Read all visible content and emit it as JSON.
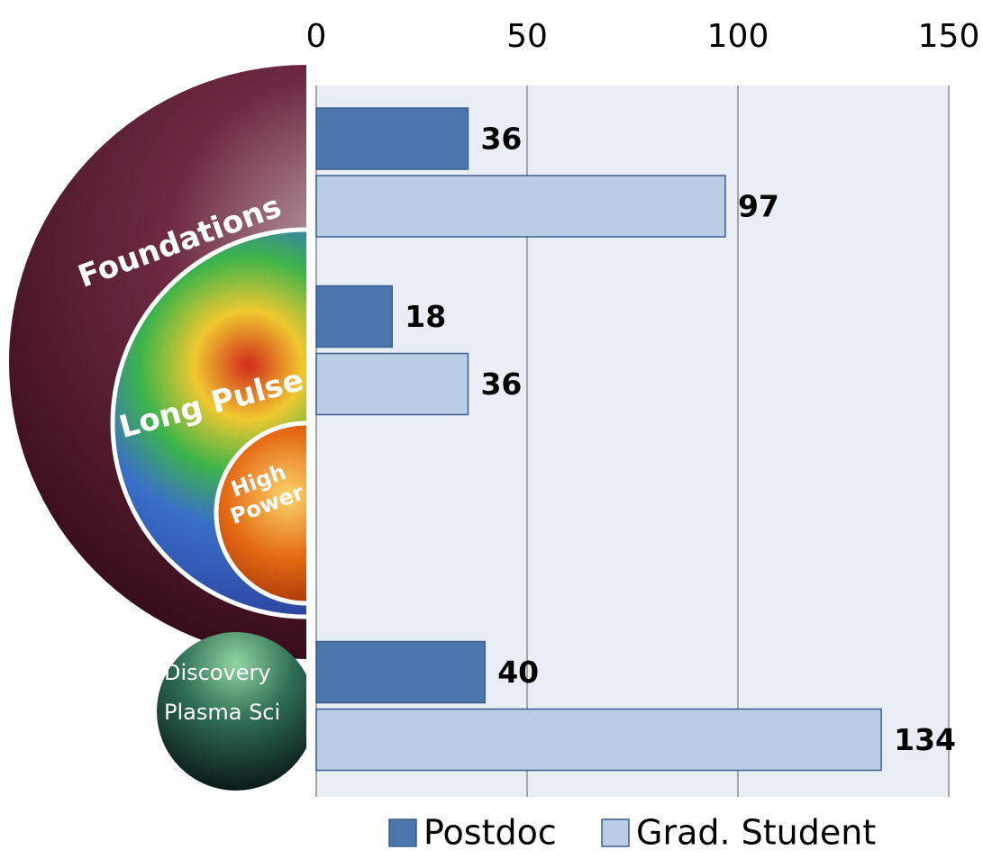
{
  "chart_data": {
    "type": "bar",
    "orientation": "horizontal",
    "categories": [
      "Foundations",
      "Long Pulse",
      "High Power",
      "Discovery Plasma Sci"
    ],
    "series": [
      {
        "name": "Postdoc",
        "color": "#4a76ab",
        "values": [
          36,
          18,
          null,
          40
        ]
      },
      {
        "name": "Grad. Student",
        "color": "#b9cde5",
        "values": [
          97,
          36,
          null,
          134
        ]
      }
    ],
    "xlim": [
      0,
      150
    ],
    "xticks": [
      0,
      50,
      100,
      150
    ],
    "grid": true,
    "legend": "bottom"
  }
}
